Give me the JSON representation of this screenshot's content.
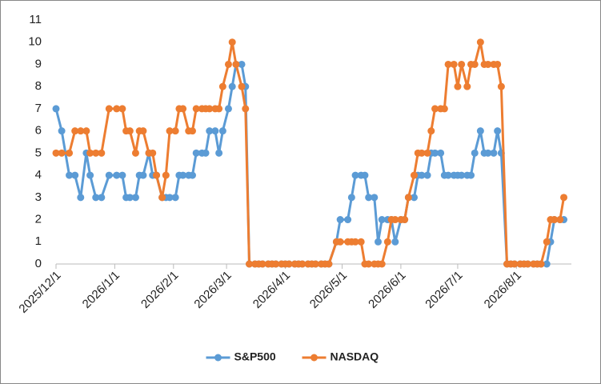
{
  "chart_data": {
    "type": "line",
    "x": [
      "2025/12/1",
      "2025/12/4",
      "2025/12/8",
      "2025/12/11",
      "2025/12/14",
      "2025/12/17",
      "2025/12/19",
      "2025/12/22",
      "2025/12/25",
      "2025/12/29",
      "2026/1/2",
      "2026/1/5",
      "2026/1/7",
      "2026/1/9",
      "2026/1/12",
      "2026/1/14",
      "2026/1/16",
      "2026/1/19",
      "2026/1/21",
      "2026/1/23",
      "2026/1/26",
      "2026/1/28",
      "2026/1/30",
      "2026/2/2",
      "2026/2/4",
      "2026/2/6",
      "2026/2/9",
      "2026/2/11",
      "2026/2/13",
      "2026/2/16",
      "2026/2/18",
      "2026/2/20",
      "2026/2/23",
      "2026/2/25",
      "2026/2/27",
      "2026/3/2",
      "2026/3/4",
      "2026/3/6",
      "2026/3/9",
      "2026/3/11",
      "2026/3/13",
      "2026/3/16",
      "2026/3/18",
      "2026/3/20",
      "2026/3/23",
      "2026/3/25",
      "2026/3/27",
      "2026/3/30",
      "2026/4/1",
      "2026/4/3",
      "2026/4/6",
      "2026/4/8",
      "2026/4/10",
      "2026/4/13",
      "2026/4/15",
      "2026/4/17",
      "2026/4/20",
      "2026/4/22",
      "2026/4/24",
      "2026/4/28",
      "2026/4/30",
      "2026/5/4",
      "2026/5/6",
      "2026/5/8",
      "2026/5/11",
      "2026/5/13",
      "2026/5/15",
      "2026/5/18",
      "2026/5/20",
      "2026/5/22",
      "2026/5/25",
      "2026/5/27",
      "2026/5/29",
      "2026/6/1",
      "2026/6/3",
      "2026/6/5",
      "2026/6/8",
      "2026/6/10",
      "2026/6/12",
      "2026/6/15",
      "2026/6/17",
      "2026/6/19",
      "2026/6/22",
      "2026/6/24",
      "2026/6/26",
      "2026/6/29",
      "2026/7/1",
      "2026/7/3",
      "2026/7/6",
      "2026/7/8",
      "2026/7/10",
      "2026/7/13",
      "2026/7/15",
      "2026/7/17",
      "2026/7/20",
      "2026/7/22",
      "2026/7/24",
      "2026/7/27",
      "2026/7/29",
      "2026/7/31",
      "2026/8/3",
      "2026/8/5",
      "2026/8/7",
      "2026/8/10",
      "2026/8/12",
      "2026/8/14",
      "2026/8/17",
      "2026/8/19",
      "2026/8/21",
      "2026/8/24",
      "2026/8/26"
    ],
    "series": [
      {
        "name": "S&P500",
        "color": "#5b9bd5",
        "values": [
          7,
          6,
          4,
          4,
          3,
          5,
          4,
          3,
          3,
          4,
          4,
          4,
          3,
          3,
          3,
          4,
          4,
          5,
          4,
          4,
          3,
          3,
          3,
          3,
          4,
          4,
          4,
          4,
          5,
          5,
          5,
          6,
          6,
          5,
          6,
          7,
          8,
          9,
          9,
          8,
          0,
          0,
          0,
          0,
          0,
          0,
          0,
          0,
          0,
          0,
          0,
          0,
          0,
          0,
          0,
          0,
          0,
          0,
          0,
          1,
          2,
          2,
          3,
          4,
          4,
          4,
          3,
          3,
          1,
          2,
          2,
          2,
          1,
          2,
          2,
          3,
          3,
          4,
          4,
          4,
          5,
          5,
          5,
          4,
          4,
          4,
          4,
          4,
          4,
          4,
          5,
          6,
          5,
          5,
          5,
          6,
          5,
          0,
          0,
          0,
          0,
          0,
          0,
          0,
          0,
          0,
          0,
          1,
          2,
          2,
          2
        ]
      },
      {
        "name": "NASDAQ",
        "color": "#ed7d31",
        "values": [
          5,
          5,
          5,
          6,
          6,
          6,
          5,
          5,
          5,
          7,
          7,
          7,
          6,
          6,
          5,
          6,
          6,
          5,
          5,
          4,
          3,
          4,
          6,
          6,
          7,
          7,
          6,
          6,
          7,
          7,
          7,
          7,
          7,
          7,
          8,
          9,
          10,
          9,
          8,
          7,
          0,
          0,
          0,
          0,
          0,
          0,
          0,
          0,
          0,
          0,
          0,
          0,
          0,
          0,
          0,
          0,
          0,
          0,
          0,
          1,
          1,
          1,
          1,
          1,
          1,
          0,
          0,
          0,
          0,
          0,
          1,
          2,
          2,
          2,
          2,
          3,
          4,
          5,
          5,
          5,
          6,
          7,
          7,
          7,
          9,
          9,
          8,
          9,
          8,
          9,
          9,
          10,
          9,
          9,
          9,
          9,
          8,
          0,
          0,
          0,
          0,
          0,
          0,
          0,
          0,
          0,
          1,
          2,
          2,
          2,
          3
        ]
      }
    ],
    "xlim": [
      "2025/12/1",
      "2026/8/30"
    ],
    "xticks": [
      "2025/12/1",
      "2026/1/1",
      "2026/2/1",
      "2026/3/1",
      "2026/4/1",
      "2026/5/1",
      "2026/6/1",
      "2026/7/1",
      "2026/8/1"
    ],
    "ylim": [
      0,
      11
    ],
    "yticks": [
      0,
      1,
      2,
      3,
      4,
      5,
      6,
      7,
      8,
      9,
      10,
      11
    ],
    "grid": false,
    "legend": "bottom"
  }
}
